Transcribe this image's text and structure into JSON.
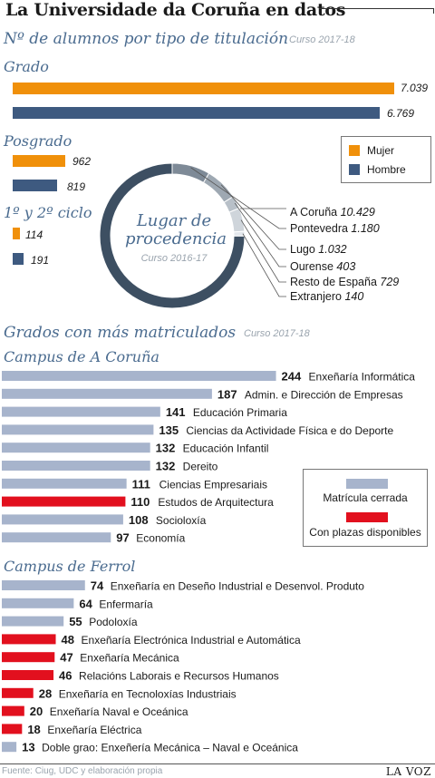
{
  "title": "La Universidade da Coruña en datos",
  "students": {
    "heading": "Nº de alumnos por tipo de titulación",
    "period": "Curso 2017-18",
    "legend": [
      {
        "label": "Mujer",
        "color": "#f0900a"
      },
      {
        "label": "Hombre",
        "color": "#3e5a80"
      }
    ]
  },
  "origin": {
    "center_title_line1": "Lugar de",
    "center_title_line2": "procedencia",
    "period": "Curso 2016-17"
  },
  "rankings": {
    "heading": "Grados con más matriculados",
    "period": "Curso 2017-18",
    "campus_coruna_label": "Campus de A Coruña",
    "campus_ferrol_label": "Campus de Ferrol",
    "legend": [
      {
        "label": "Matrícula cerrada",
        "color": "#a7b4cc"
      },
      {
        "label": "Con plazas disponibles",
        "color": "#e2101e"
      }
    ]
  },
  "chart_data": [
    {
      "type": "bar",
      "title": "Nº de alumnos por tipo de titulación",
      "categories": [
        "Grado",
        "Posgrado",
        "1º y 2º ciclo"
      ],
      "series": [
        {
          "name": "Mujer",
          "values": [
            7039,
            962,
            114
          ],
          "labels": [
            "7.039",
            "962",
            "114"
          ]
        },
        {
          "name": "Hombre",
          "values": [
            6769,
            819,
            191
          ],
          "labels": [
            "6.769",
            "819",
            "191"
          ]
        }
      ]
    },
    {
      "type": "pie",
      "title": "Lugar de procedencia",
      "categories": [
        "A Coruña",
        "Pontevedra",
        "Lugo",
        "Ourense",
        "Resto de España",
        "Extranjero"
      ],
      "values": [
        10429,
        1180,
        1032,
        403,
        729,
        140
      ],
      "labels": [
        "10.429",
        "1.180",
        "1.032",
        "403",
        "729",
        "140"
      ],
      "colors": [
        "#3d4f62",
        "#7e8a97",
        "#9ea8b2",
        "#b8c0c8",
        "#cfd5db",
        "#e3e7ec"
      ]
    },
    {
      "type": "bar",
      "title": "Campus de A Coruña",
      "categories": [
        "Enxeñaría Informática",
        "Admin. e Dirección de Empresas",
        "Educación Primaria",
        "Ciencias da Actividade Física e do Deporte",
        "Educación Infantil",
        "Dereito",
        "Ciencias Empresariais",
        "Estudos de Arquitectura",
        "Socioloxía",
        "Economía"
      ],
      "values": [
        244,
        187,
        141,
        135,
        132,
        132,
        111,
        110,
        108,
        97
      ],
      "status": [
        "Matrícula cerrada",
        "Matrícula cerrada",
        "Matrícula cerrada",
        "Matrícula cerrada",
        "Matrícula cerrada",
        "Matrícula cerrada",
        "Matrícula cerrada",
        "Con plazas disponibles",
        "Matrícula cerrada",
        "Matrícula cerrada"
      ]
    },
    {
      "type": "bar",
      "title": "Campus de Ferrol",
      "categories": [
        "Enxeñaría en Deseño Industrial e Desenvol. Produto",
        "Enfermaría",
        "Podoloxía",
        "Enxeñaría Electrónica Industrial e Automática",
        "Enxeñaría Mecánica",
        "Relacións Laborais e Recursos Humanos",
        "Enxeñaría en Tecnoloxías Industriais",
        "Enxeñaría Naval e Oceánica",
        "Enxeñaría Eléctrica",
        "Doble grao: Enxeñería Mecánica – Naval e Oceánica"
      ],
      "values": [
        74,
        64,
        55,
        48,
        47,
        46,
        28,
        20,
        18,
        13
      ],
      "status": [
        "Matrícula cerrada",
        "Matrícula cerrada",
        "Matrícula cerrada",
        "Con plazas disponibles",
        "Con plazas disponibles",
        "Con plazas disponibles",
        "Con plazas disponibles",
        "Con plazas disponibles",
        "Con plazas disponibles",
        "Matrícula cerrada"
      ]
    }
  ],
  "footer": {
    "source": "Fuente: Ciug, UDC y elaboración propia",
    "brand": "LA VOZ"
  }
}
